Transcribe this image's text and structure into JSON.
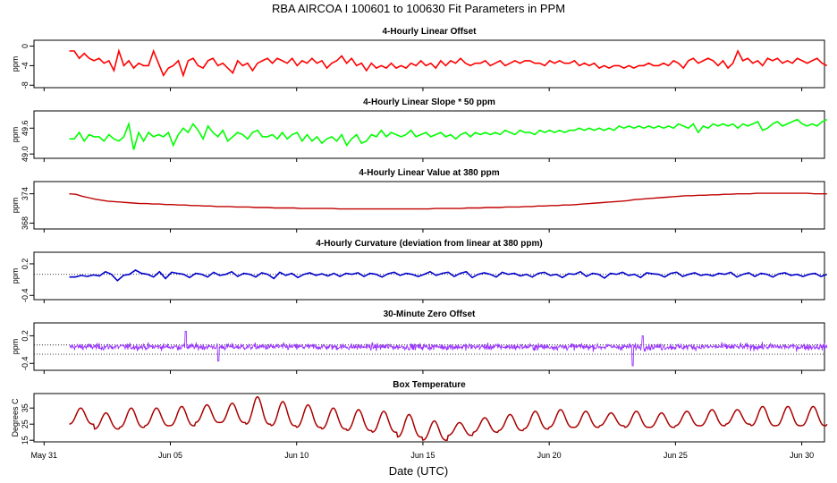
{
  "figure_title": "RBA   AIRCOA I   100601 to 100630   Fit Parameters in PPM",
  "x_axis": {
    "label": "Date (UTC)",
    "range_days": [
      -0.4,
      30.9
    ],
    "ticks": [
      {
        "day": 0,
        "label": "May 31"
      },
      {
        "day": 5,
        "label": "Jun 05"
      },
      {
        "day": 10,
        "label": "Jun 10"
      },
      {
        "day": 15,
        "label": "Jun 15"
      },
      {
        "day": 20,
        "label": "Jun 20"
      },
      {
        "day": 25,
        "label": "Jun 25"
      },
      {
        "day": 30,
        "label": "Jun 30"
      }
    ]
  },
  "chart_data": [
    {
      "type": "line",
      "title": "4-Hourly Linear Offset",
      "ylabel": "ppm",
      "color": "#ff0000",
      "ylim": [
        -8.5,
        1.2
      ],
      "yticks": [
        {
          "v": 0,
          "label": "0"
        },
        {
          "v": -4,
          "label": "-4"
        },
        {
          "v": -8,
          "label": "-8"
        }
      ],
      "xlim": [
        -0.4,
        30.9
      ],
      "series": [
        {
          "name": "offset",
          "x_start": 1.0,
          "x_end": 31.0,
          "values": [
            -1,
            -1,
            -2.5,
            -1.5,
            -2.5,
            -3,
            -2.5,
            -3.5,
            -3,
            -5,
            -1,
            -4,
            -3,
            -4.5,
            -3.5,
            -4,
            -4,
            -1,
            -3.5,
            -6,
            -4.5,
            -4,
            -3,
            -6,
            -3,
            -2.5,
            -4,
            -4.5,
            -3,
            -2.5,
            -4,
            -3.5,
            -4.5,
            -5.5,
            -3,
            -4,
            -3.5,
            -5,
            -3.5,
            -3,
            -2.5,
            -3.5,
            -2.5,
            -3,
            -3.5,
            -2.5,
            -4,
            -3,
            -3.5,
            -2.5,
            -3.5,
            -3,
            -4.5,
            -3.5,
            -3,
            -2,
            -3.5,
            -2.5,
            -4,
            -3.5,
            -5,
            -3.5,
            -4.5,
            -4,
            -4.5,
            -3.5,
            -4.5,
            -4,
            -4.5,
            -3.5,
            -4,
            -3,
            -4,
            -3.5,
            -4.5,
            -3,
            -4,
            -3,
            -3.5,
            -2.5,
            -3.5,
            -4,
            -3.5,
            -3.5,
            -3,
            -4,
            -3.5,
            -3,
            -4,
            -3.5,
            -3,
            -3.5,
            -3,
            -3,
            -3.5,
            -3.5,
            -4,
            -3,
            -3.5,
            -3,
            -3.5,
            -3.5,
            -3,
            -4,
            -3.5,
            -4,
            -3.5,
            -4.5,
            -4,
            -4.5,
            -4,
            -4,
            -4.5,
            -4,
            -4.5,
            -4,
            -4,
            -3.5,
            -4,
            -4,
            -3.5,
            -4,
            -3,
            -3.5,
            -4.5,
            -3,
            -2.5,
            -3.5,
            -3,
            -2.5,
            -3,
            -4,
            -3,
            -4.5,
            -3.5,
            -1,
            -3,
            -2.5,
            -3.5,
            -3,
            -4,
            -2.5,
            -3,
            -2.5,
            -3.5,
            -3,
            -3.5,
            -2.5,
            -3,
            -3.5,
            -3,
            -2.5,
            -3.5,
            -4
          ]
        }
      ]
    },
    {
      "type": "line",
      "title": "4-Hourly Linear Slope * 50 ppm",
      "ylabel": "ppm",
      "color": "#00ff00",
      "ylim": [
        48.9,
        50.0
      ],
      "yticks": [
        {
          "v": 49.6,
          "label": "49.6"
        },
        {
          "v": 49.0,
          "label": "49.0"
        }
      ],
      "xlim": [
        -0.4,
        30.9
      ],
      "series": [
        {
          "name": "slope",
          "x_start": 1.0,
          "x_end": 31.0,
          "values": [
            49.35,
            49.35,
            49.5,
            49.3,
            49.45,
            49.4,
            49.4,
            49.3,
            49.45,
            49.35,
            49.3,
            49.4,
            49.7,
            49.1,
            49.5,
            49.3,
            49.5,
            49.4,
            49.45,
            49.4,
            49.5,
            49.2,
            49.45,
            49.6,
            49.5,
            49.7,
            49.55,
            49.35,
            49.65,
            49.5,
            49.4,
            49.55,
            49.3,
            49.4,
            49.5,
            49.45,
            49.35,
            49.5,
            49.55,
            49.4,
            49.4,
            49.45,
            49.35,
            49.5,
            49.35,
            49.45,
            49.5,
            49.3,
            49.45,
            49.3,
            49.4,
            49.25,
            49.35,
            49.4,
            49.3,
            49.45,
            49.2,
            49.35,
            49.45,
            49.25,
            49.3,
            49.45,
            49.4,
            49.55,
            49.4,
            49.5,
            49.45,
            49.4,
            49.45,
            49.55,
            49.4,
            49.45,
            49.5,
            49.4,
            49.45,
            49.5,
            49.4,
            49.45,
            49.35,
            49.45,
            49.5,
            49.4,
            49.5,
            49.45,
            49.5,
            49.45,
            49.5,
            49.45,
            49.55,
            49.5,
            49.45,
            49.55,
            49.5,
            49.5,
            49.45,
            49.55,
            49.5,
            49.55,
            49.5,
            49.55,
            49.5,
            49.55,
            49.55,
            49.6,
            49.55,
            49.6,
            49.55,
            49.6,
            49.55,
            49.6,
            49.55,
            49.65,
            49.6,
            49.65,
            49.6,
            49.65,
            49.6,
            49.65,
            49.6,
            49.65,
            49.6,
            49.65,
            49.6,
            49.7,
            49.65,
            49.6,
            49.7,
            49.5,
            49.65,
            49.6,
            49.7,
            49.65,
            49.7,
            49.65,
            49.7,
            49.6,
            49.7,
            49.65,
            49.7,
            49.75,
            49.55,
            49.6,
            49.7,
            49.75,
            49.65,
            49.7,
            49.75,
            49.8,
            49.7,
            49.65,
            49.7,
            49.65,
            49.75,
            49.8
          ]
        }
      ]
    },
    {
      "type": "line",
      "title": "4-Hourly Linear Value at 380 ppm",
      "ylabel": "ppm",
      "color": "#c00000",
      "ylim": [
        366.8,
        376.5
      ],
      "yticks": [
        {
          "v": 374,
          "label": "374"
        },
        {
          "v": 368,
          "label": "368"
        }
      ],
      "xlim": [
        -0.4,
        30.9
      ],
      "series": [
        {
          "name": "value380",
          "x_start": 1.0,
          "x_end": 31.0,
          "values": [
            374.0,
            373.9,
            373.5,
            373.2,
            372.9,
            372.7,
            372.5,
            372.4,
            372.3,
            372.2,
            372.1,
            372.0,
            372.0,
            371.9,
            371.9,
            371.8,
            371.8,
            371.7,
            371.7,
            371.6,
            371.6,
            371.5,
            371.5,
            371.4,
            371.4,
            371.4,
            371.3,
            371.3,
            371.3,
            371.2,
            371.2,
            371.2,
            371.1,
            371.1,
            371.1,
            371.1,
            371.0,
            371.0,
            371.0,
            371.0,
            371.0,
            371.0,
            370.9,
            370.9,
            370.9,
            370.9,
            370.9,
            370.9,
            370.9,
            370.9,
            370.9,
            370.9,
            370.9,
            370.9,
            370.9,
            370.9,
            370.9,
            371.0,
            371.0,
            371.0,
            371.0,
            371.0,
            371.1,
            371.1,
            371.1,
            371.2,
            371.2,
            371.2,
            371.3,
            371.3,
            371.3,
            371.4,
            371.4,
            371.5,
            371.5,
            371.6,
            371.6,
            371.7,
            371.7,
            371.8,
            371.9,
            372.0,
            372.1,
            372.2,
            372.3,
            372.4,
            372.5,
            372.6,
            372.8,
            372.9,
            373.0,
            373.1,
            373.2,
            373.3,
            373.4,
            373.5,
            373.6,
            373.6,
            373.7,
            373.7,
            373.8,
            373.8,
            373.9,
            373.9,
            374.0,
            374.0,
            374.0,
            374.1,
            374.1,
            374.1,
            374.1,
            374.1,
            374.1,
            374.1,
            374.1,
            374.1,
            374.0,
            374.0,
            374.0
          ]
        }
      ]
    },
    {
      "type": "line",
      "title": "4-Hourly Curvature (deviation from linear at 380 ppm)",
      "ylabel": "ppm",
      "color": "#0000cc",
      "ylim": [
        -0.48,
        0.42
      ],
      "yticks": [
        {
          "v": 0.2,
          "label": "0.2"
        },
        {
          "v": -0.4,
          "label": "-0.4"
        }
      ],
      "reference_line": 0,
      "xlim": [
        -0.4,
        30.9
      ],
      "series": [
        {
          "name": "curvature",
          "x_start": 1.0,
          "x_end": 31.0,
          "values": [
            -0.05,
            -0.05,
            -0.02,
            -0.04,
            -0.01,
            -0.03,
            0.05,
            0.0,
            -0.12,
            -0.02,
            0.0,
            0.08,
            0.02,
            0.0,
            -0.05,
            0.05,
            -0.08,
            0.04,
            0.02,
            0.0,
            -0.06,
            0.02,
            0.0,
            -0.05,
            0.04,
            -0.02,
            0.0,
            0.05,
            -0.04,
            0.02,
            0.0,
            -0.05,
            0.03,
            0.0,
            -0.08,
            0.04,
            -0.02,
            0.02,
            -0.06,
            0.0,
            0.03,
            -0.02,
            0.01,
            -0.03,
            0.02,
            -0.04,
            0.02,
            0.0,
            0.03,
            -0.04,
            0.02,
            0.0,
            -0.05,
            0.01,
            0.04,
            -0.02,
            0.02,
            0.0,
            -0.04,
            0.0,
            0.05,
            -0.02,
            0.02,
            0.04,
            -0.04,
            0.02,
            0.05,
            -0.06,
            0.0,
            0.03,
            0.0,
            -0.05,
            0.04,
            0.0,
            0.02,
            -0.03,
            0.0,
            -0.05,
            0.02,
            0.04,
            -0.02,
            0.0,
            -0.06,
            0.01,
            0.0,
            0.05,
            -0.04,
            0.02,
            0.0,
            -0.07,
            0.02,
            0.0,
            0.04,
            -0.02,
            0.0,
            -0.06,
            0.03,
            0.01,
            0.0,
            -0.05,
            0.02,
            0.04,
            -0.04,
            0.0,
            0.03,
            -0.02,
            0.0,
            -0.03,
            0.02,
            0.0,
            0.04,
            -0.05,
            0.0,
            0.03,
            -0.04,
            0.02,
            0.0,
            -0.05,
            0.01,
            0.03,
            -0.02,
            0.0,
            -0.04,
            0.0,
            0.02,
            -0.04,
            0.0
          ]
        }
      ]
    },
    {
      "type": "scatter",
      "title": "30-Minute Zero Offset",
      "ylabel": "ppm",
      "color": "#9933ff",
      "ylim": [
        -0.55,
        0.48
      ],
      "yticks": [
        {
          "v": 0.2,
          "label": "0.2"
        },
        {
          "v": -0.4,
          "label": "-0.4"
        }
      ],
      "reference_lines": [
        0.0,
        -0.2
      ],
      "xlim": [
        -0.4,
        30.9
      ],
      "description_values": "dense 30-minute points fluctuating mostly between -0.2 and 0.15 ppm, with spikes to about 0.3 near Jun 06 and to about -0.45 near Jun 23",
      "series": [
        {
          "name": "zero_offset",
          "x_start": 1.0,
          "x_end": 31.0,
          "n_points": 1440,
          "base": -0.04,
          "noise": 0.09,
          "spikes": [
            {
              "day": 5.6,
              "value": 0.3
            },
            {
              "day": 6.9,
              "value": -0.35
            },
            {
              "day": 23.3,
              "value": -0.45
            },
            {
              "day": 23.7,
              "value": 0.2
            }
          ]
        }
      ]
    },
    {
      "type": "line",
      "title": "Box Temperature",
      "ylabel": "Degrees C",
      "color": "#aa0000",
      "ylim": [
        14,
        44
      ],
      "yticks": [
        {
          "v": 35,
          "label": "35"
        },
        {
          "v": 25,
          "label": "25"
        },
        {
          "v": 15,
          "label": "15"
        }
      ],
      "xlim": [
        -0.4,
        30.9
      ],
      "series": [
        {
          "name": "box_temp",
          "x_start": 1.0,
          "x_end": 31.0,
          "period_days": 1.0,
          "daily_max": [
            35,
            32,
            35,
            35,
            36,
            37,
            38,
            42,
            39,
            37,
            35,
            34,
            33,
            31,
            27,
            26,
            29,
            31,
            33,
            34,
            33,
            32,
            33,
            32,
            33,
            34,
            34,
            36,
            36,
            36,
            35
          ],
          "daily_min": [
            25,
            22,
            23,
            24,
            24,
            26,
            26,
            25,
            24,
            23,
            22,
            21,
            20,
            17,
            15,
            18,
            20,
            21,
            22,
            23,
            23,
            24,
            23,
            23,
            24,
            24,
            25,
            24,
            24,
            24,
            25
          ]
        }
      ]
    }
  ]
}
